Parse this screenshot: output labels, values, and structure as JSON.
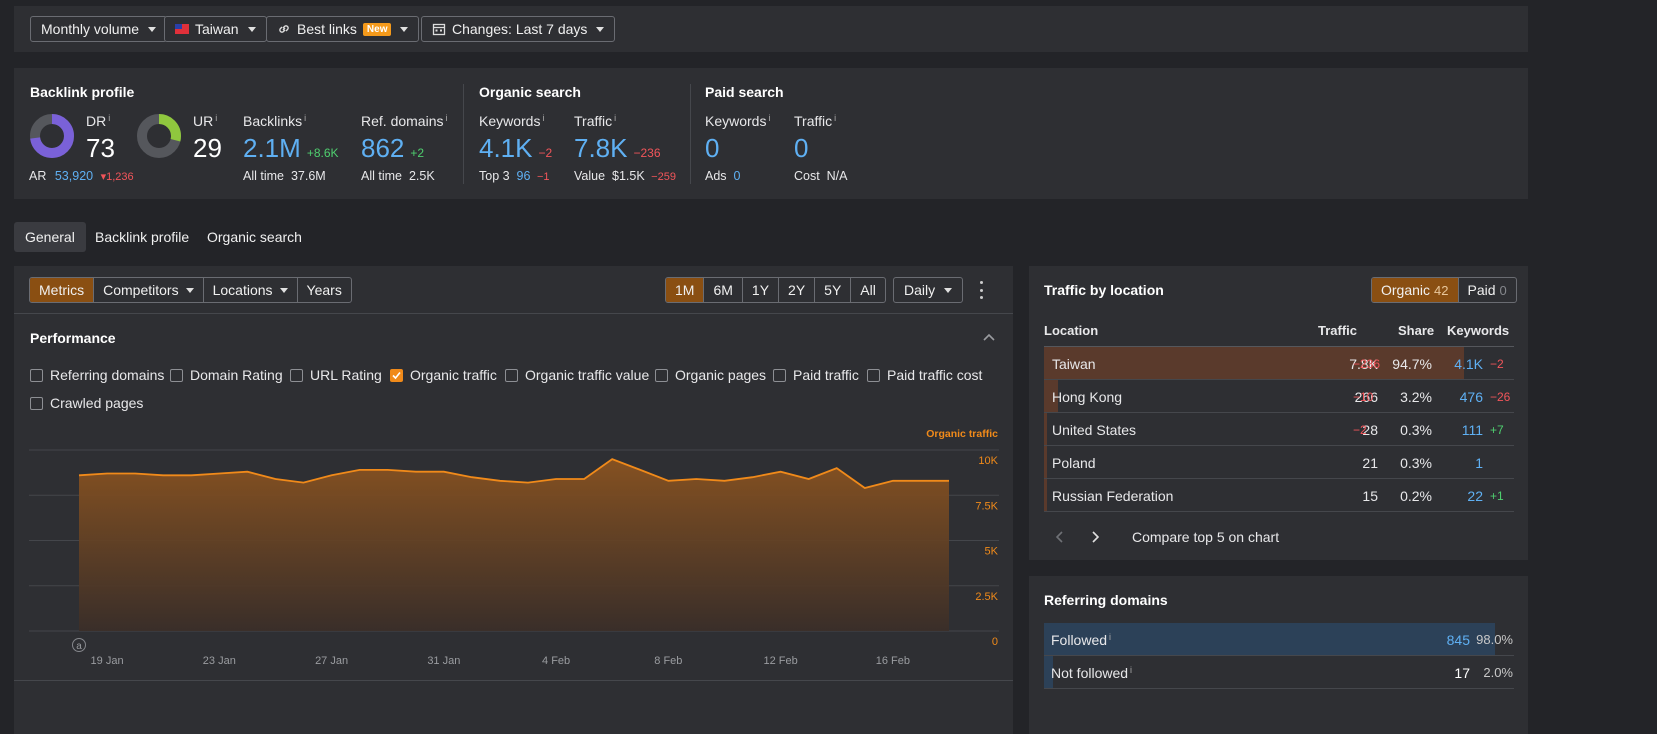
{
  "toolbar": {
    "volume": "Monthly volume",
    "country": "Taiwan",
    "best_links": "Best links",
    "new_badge": "New",
    "changes": "Changes: Last 7 days"
  },
  "backlink_profile": {
    "title": "Backlink profile",
    "dr_label": "DR",
    "dr_value": "73",
    "ur_label": "UR",
    "ur_value": "29",
    "ar_label": "AR",
    "ar_value": "53,920",
    "ar_delta": "1,236",
    "backlinks_label": "Backlinks",
    "backlinks_value": "2.1M",
    "backlinks_delta": "+8.6K",
    "backlinks_alltime_label": "All time",
    "backlinks_alltime_value": "37.6M",
    "refdomains_label": "Ref. domains",
    "refdomains_value": "862",
    "refdomains_delta": "+2",
    "refdomains_alltime_label": "All time",
    "refdomains_alltime_value": "2.5K",
    "dr_ring_fraction": 0.73,
    "ur_ring_fraction": 0.29
  },
  "organic_search": {
    "title": "Organic search",
    "keywords_label": "Keywords",
    "keywords_value": "4.1K",
    "keywords_delta": "−2",
    "top3_label": "Top 3",
    "top3_value": "96",
    "top3_delta": "−1",
    "traffic_label": "Traffic",
    "traffic_value": "7.8K",
    "traffic_delta": "−236",
    "value_label": "Value",
    "value_value": "$1.5K",
    "value_delta": "−259"
  },
  "paid_search": {
    "title": "Paid search",
    "keywords_label": "Keywords",
    "keywords_value": "0",
    "ads_label": "Ads",
    "ads_value": "0",
    "traffic_label": "Traffic",
    "traffic_value": "0",
    "cost_label": "Cost",
    "cost_value": "N/A"
  },
  "tabs": [
    "General",
    "Backlink profile",
    "Organic search"
  ],
  "chart_controls": {
    "views": [
      "Metrics",
      "Competitors",
      "Locations",
      "Years"
    ],
    "ranges": [
      "1M",
      "6M",
      "1Y",
      "2Y",
      "5Y",
      "All"
    ],
    "interval": "Daily"
  },
  "performance": {
    "title": "Performance",
    "checkboxes": [
      {
        "label": "Referring domains",
        "checked": false
      },
      {
        "label": "Domain Rating",
        "checked": false
      },
      {
        "label": "URL Rating",
        "checked": false
      },
      {
        "label": "Organic traffic",
        "checked": true
      },
      {
        "label": "Organic traffic value",
        "checked": false
      },
      {
        "label": "Organic pages",
        "checked": false
      },
      {
        "label": "Paid traffic",
        "checked": false
      },
      {
        "label": "Paid traffic cost",
        "checked": false
      },
      {
        "label": "Crawled pages",
        "checked": false
      }
    ],
    "annotation_marker": "a"
  },
  "chart_data": {
    "type": "area",
    "series": [
      {
        "name": "Organic traffic",
        "color": "#f08a1a",
        "values": [
          8600,
          8700,
          8700,
          8600,
          8600,
          8700,
          8800,
          8400,
          8200,
          8600,
          8900,
          8900,
          8800,
          8800,
          8500,
          8300,
          8200,
          8400,
          8400,
          9500,
          8900,
          8300,
          8400,
          8300,
          8500,
          8800,
          8400,
          9000,
          7900,
          8300,
          8300,
          8300
        ]
      }
    ],
    "x": [
      "18 Jan",
      "19 Jan",
      "20 Jan",
      "21 Jan",
      "22 Jan",
      "23 Jan",
      "24 Jan",
      "25 Jan",
      "26 Jan",
      "27 Jan",
      "28 Jan",
      "29 Jan",
      "30 Jan",
      "31 Jan",
      "1 Feb",
      "2 Feb",
      "3 Feb",
      "4 Feb",
      "5 Feb",
      "6 Feb",
      "7 Feb",
      "8 Feb",
      "9 Feb",
      "10 Feb",
      "11 Feb",
      "12 Feb",
      "13 Feb",
      "14 Feb",
      "15 Feb",
      "16 Feb",
      "17 Feb",
      "18 Feb"
    ],
    "x_ticks": [
      "19 Jan",
      "23 Jan",
      "27 Jan",
      "31 Jan",
      "4 Feb",
      "8 Feb",
      "12 Feb",
      "16 Feb"
    ],
    "y_ticks": [
      "10K",
      "7.5K",
      "5K",
      "2.5K",
      "0"
    ],
    "ylim": [
      0,
      10000
    ],
    "grid": true
  },
  "traffic_by_location": {
    "title": "Traffic by location",
    "organic_label": "Organic",
    "organic_count": "42",
    "paid_label": "Paid",
    "paid_count": "0",
    "headers": [
      "Location",
      "Traffic",
      "Share",
      "Keywords"
    ],
    "rows": [
      {
        "location": "Taiwan",
        "traffic": "7.8K",
        "traffic_delta": "−236",
        "share": "94.7%",
        "keywords": "4.1K",
        "keywords_delta": "−2",
        "share_fraction": 0.947
      },
      {
        "location": "Hong Kong",
        "traffic": "266",
        "traffic_delta": "−10",
        "share": "3.2%",
        "keywords": "476",
        "keywords_delta": "−26",
        "share_fraction": 0.032
      },
      {
        "location": "United States",
        "traffic": "28",
        "traffic_delta": "−2",
        "share": "0.3%",
        "keywords": "111",
        "keywords_delta": "+7",
        "share_fraction": 0.003
      },
      {
        "location": "Poland",
        "traffic": "21",
        "traffic_delta": "",
        "share": "0.3%",
        "keywords": "1",
        "keywords_delta": "",
        "share_fraction": 0.003
      },
      {
        "location": "Russian Federation",
        "traffic": "15",
        "traffic_delta": "",
        "share": "0.2%",
        "keywords": "22",
        "keywords_delta": "+1",
        "share_fraction": 0.002
      }
    ],
    "compare_label": "Compare top 5 on chart"
  },
  "referring_domains": {
    "title": "Referring domains",
    "rows": [
      {
        "label": "Followed",
        "value": "845",
        "share": "98.0%",
        "fraction": 0.98
      },
      {
        "label": "Not followed",
        "value": "17",
        "share": "2.0%",
        "fraction": 0.02
      }
    ]
  },
  "colors": {
    "accent_orange": "#f08a1a",
    "link_blue": "#5fb0f3",
    "positive_green": "#4fcf6f",
    "negative_red": "#f2555a",
    "dr_ring": "#7a61d8",
    "ur_ring": "#8fc73e"
  }
}
